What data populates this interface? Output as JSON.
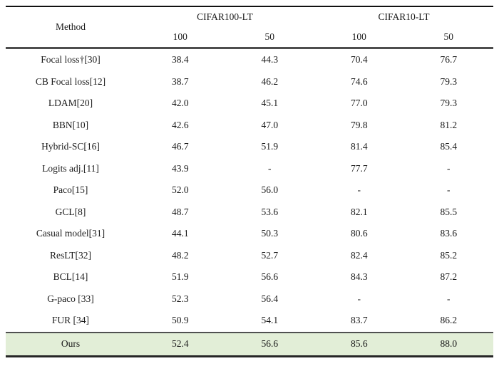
{
  "table": {
    "header": {
      "method_label": "Method",
      "groups": [
        {
          "label": "CIFAR100-LT",
          "subs": [
            "100",
            "50"
          ]
        },
        {
          "label": "CIFAR10-LT",
          "subs": [
            "100",
            "50"
          ]
        }
      ]
    },
    "rows": [
      {
        "method": "Focal loss†[30]",
        "values": [
          "38.4",
          "44.3",
          "70.4",
          "76.7"
        ]
      },
      {
        "method": "CB Focal loss[12]",
        "values": [
          "38.7",
          "46.2",
          "74.6",
          "79.3"
        ]
      },
      {
        "method": "LDAM[20]",
        "values": [
          "42.0",
          "45.1",
          "77.0",
          "79.3"
        ]
      },
      {
        "method": "BBN[10]",
        "values": [
          "42.6",
          "47.0",
          "79.8",
          "81.2"
        ]
      },
      {
        "method": "Hybrid-SC[16]",
        "values": [
          "46.7",
          "51.9",
          "81.4",
          "85.4"
        ]
      },
      {
        "method": "Logits adj.[11]",
        "values": [
          "43.9",
          "-",
          "77.7",
          "-"
        ]
      },
      {
        "method": "Paco[15]",
        "values": [
          "52.0",
          "56.0",
          "-",
          "-"
        ]
      },
      {
        "method": "GCL[8]",
        "values": [
          "48.7",
          "53.6",
          "82.1",
          "85.5"
        ]
      },
      {
        "method": "Casual model[31]",
        "values": [
          "44.1",
          "50.3",
          "80.6",
          "83.6"
        ]
      },
      {
        "method": "ResLT[32]",
        "values": [
          "48.2",
          "52.7",
          "82.4",
          "85.2"
        ]
      },
      {
        "method": "BCL[14]",
        "values": [
          "51.9",
          "56.6",
          "84.3",
          "87.2"
        ]
      },
      {
        "method": "G-paco [33]",
        "values": [
          "52.3",
          "56.4",
          "-",
          "-"
        ]
      },
      {
        "method": "FUR [34]",
        "values": [
          "50.9",
          "54.1",
          "83.7",
          "86.2"
        ]
      }
    ],
    "highlight_row": {
      "method": "Ours",
      "values": [
        "52.4",
        "56.6",
        "85.6",
        "88.0"
      ]
    },
    "colors": {
      "highlight_bg": "#e2eed7",
      "text": "#1b1b1b"
    }
  }
}
